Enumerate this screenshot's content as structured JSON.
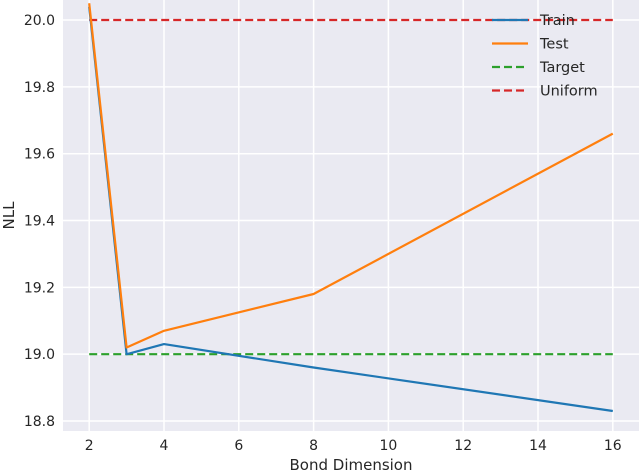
{
  "chart_data": {
    "type": "line",
    "xlabel": "Bond Dimension",
    "ylabel": "NLL",
    "xlim": [
      1.3,
      16.7
    ],
    "ylim": [
      18.77,
      20.06
    ],
    "xticks": [
      2,
      4,
      6,
      8,
      10,
      12,
      14,
      16
    ],
    "yticks": [
      18.8,
      19.0,
      19.2,
      19.4,
      19.6,
      19.8,
      20.0
    ],
    "xtick_labels": [
      "2",
      "4",
      "6",
      "8",
      "10",
      "12",
      "14",
      "16"
    ],
    "ytick_labels": [
      "18.8",
      "19.0",
      "19.2",
      "19.4",
      "19.6",
      "19.8",
      "20.0"
    ],
    "grid": true,
    "legend_position": "top-right",
    "series": [
      {
        "name": "Train",
        "color": "#1f77b4",
        "style": "solid",
        "x": [
          2,
          3,
          4,
          8,
          16
        ],
        "y": [
          20.04,
          19.0,
          19.03,
          18.96,
          18.83
        ]
      },
      {
        "name": "Test",
        "color": "#ff7f0e",
        "style": "solid",
        "x": [
          2,
          3,
          4,
          8,
          16
        ],
        "y": [
          20.05,
          19.02,
          19.07,
          19.18,
          19.66
        ]
      },
      {
        "name": "Target",
        "color": "#2ca02c",
        "style": "dashed",
        "x": [
          2,
          16
        ],
        "y": [
          19.0,
          19.0
        ]
      },
      {
        "name": "Uniform",
        "color": "#d62728",
        "style": "dashed",
        "x": [
          2,
          16
        ],
        "y": [
          20.0,
          20.0
        ]
      }
    ]
  }
}
